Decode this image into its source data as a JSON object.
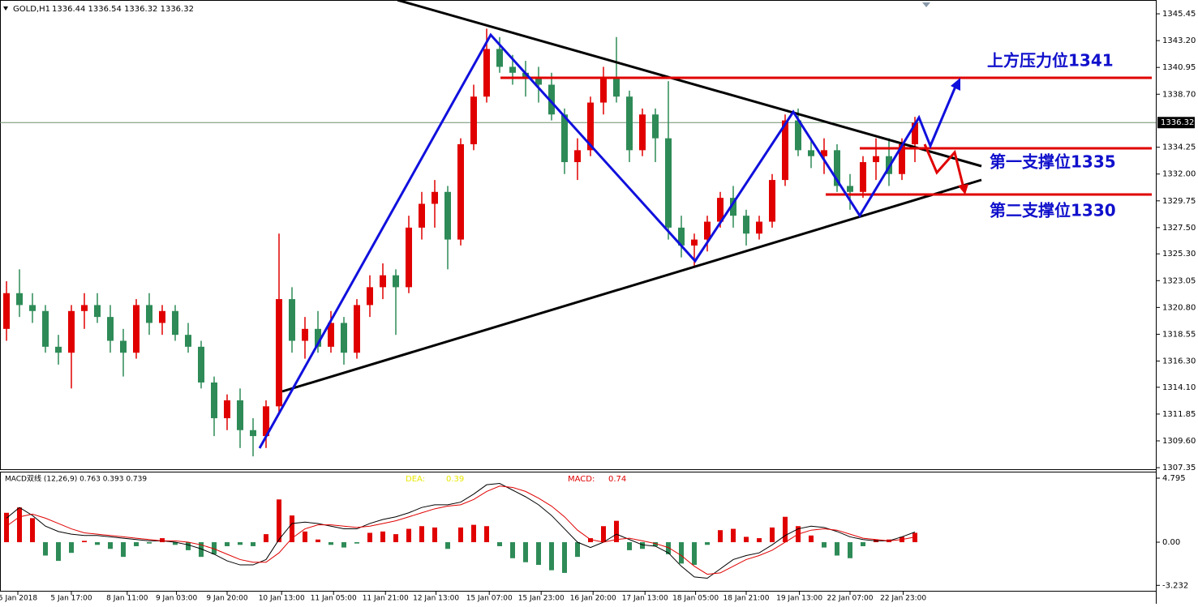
{
  "chart_data": [
    {
      "type": "candlestick",
      "title": "GOLD,H1",
      "ohlc_label": "1336.44 1336.54 1336.32 1336.32",
      "current_price": 1336.32,
      "up_color": "#e00000",
      "down_color": "#2e8b57",
      "xlim": [
        -0.5,
        88.5625
      ],
      "ylim": [
        1307.15,
        1346.61
      ],
      "yticks": [
        1345.45,
        {
          "value": 1343.2,
          "label": "1343.20"
        },
        1340.95,
        {
          "value": 1338.7,
          "label": "1338.70"
        },
        1334.25,
        {
          "value": 1332,
          "label": "1332.00"
        },
        1329.75,
        {
          "value": 1327.5,
          "label": "1327.50"
        },
        {
          "value": 1325.3,
          "label": "1325.30"
        },
        1323.05,
        {
          "value": 1320.8,
          "label": "1320.80"
        },
        1318.55,
        {
          "value": 1316.3,
          "label": "1316.30"
        },
        {
          "value": 1314.1,
          "label": "1314.10"
        },
        1311.85,
        {
          "value": 1309.6,
          "label": "1309.60"
        },
        1307.35
      ],
      "open": [
        1319,
        1322,
        1321,
        1320.5,
        1317.5,
        1317,
        1320.5,
        1321,
        1320,
        1318,
        1317,
        1321,
        1319.5,
        1320.5,
        1318.5,
        1317.5,
        1314.5,
        1311.5,
        1313,
        1310.5,
        1310,
        1312.5,
        1321.5,
        1318,
        1319,
        1317.5,
        1319.5,
        1317,
        1321,
        1322.5,
        1323.5,
        1322.5,
        1327.5,
        1329.5,
        1330.5,
        1326.5,
        1334.5,
        1338.5,
        1342.5,
        1341,
        1340.5,
        1340,
        1339.5,
        1337,
        1333,
        1334,
        1338,
        1340,
        1338.5,
        1334,
        1337,
        1335,
        1327.5,
        1326,
        1326.5,
        1328,
        1330,
        1328.5,
        1327,
        1328,
        1331.5,
        1336.5,
        1334,
        1333.5,
        1334,
        1331,
        1330.5,
        1333,
        1333.5,
        1332,
        1334.5
      ],
      "high": [
        1323,
        1324,
        1322,
        1321,
        1318.5,
        1321,
        1322,
        1322,
        1321,
        1319,
        1321.5,
        1322,
        1321,
        1321,
        1319.5,
        1318,
        1315,
        1313.5,
        1314,
        1311.5,
        1313,
        1327,
        1322.5,
        1320,
        1320.5,
        1320.5,
        1320,
        1321.5,
        1323.5,
        1324.5,
        1324,
        1328.5,
        1330.5,
        1331.5,
        1331,
        1335,
        1339.5,
        1344.2,
        1343.5,
        1342,
        1341.5,
        1341,
        1340.5,
        1337.5,
        1335,
        1338.5,
        1341,
        1343.5,
        1339,
        1337.5,
        1337.5,
        1339.8,
        1328.5,
        1327,
        1328.5,
        1330.5,
        1331,
        1329,
        1328.5,
        1332,
        1337,
        1337.5,
        1335,
        1335,
        1334.5,
        1332,
        1333.5,
        1335,
        1335,
        1335,
        1336.8
      ],
      "low": [
        1318,
        1320,
        1319.5,
        1317,
        1316,
        1314,
        1319,
        1319.5,
        1317,
        1315,
        1316.5,
        1318.5,
        1318.5,
        1318,
        1317,
        1314,
        1310,
        1310.5,
        1309,
        1308.3,
        1309,
        1312,
        1317,
        1316.5,
        1317,
        1317,
        1316,
        1316.5,
        1320,
        1321.5,
        1318.5,
        1322,
        1326.5,
        1327.5,
        1324,
        1326,
        1334,
        1338,
        1340.5,
        1339.5,
        1338.5,
        1338,
        1336.5,
        1332,
        1331.5,
        1333.5,
        1337,
        1338,
        1333,
        1333.5,
        1333,
        1326.5,
        1325,
        1324.3,
        1325.5,
        1327.5,
        1327.5,
        1326,
        1326.5,
        1327.5,
        1331,
        1333.5,
        1332.5,
        1332,
        1330.5,
        1329,
        1330,
        1331.5,
        1331,
        1331.5,
        1333
      ],
      "close": [
        1322,
        1321,
        1320.5,
        1317.5,
        1317,
        1320.5,
        1321,
        1320,
        1318,
        1317,
        1321,
        1319.5,
        1320.5,
        1318.5,
        1317.5,
        1314.5,
        1311.5,
        1313,
        1310.5,
        1310,
        1312.5,
        1321.5,
        1318,
        1319,
        1317.5,
        1319.5,
        1317,
        1321,
        1322.5,
        1323.5,
        1322.5,
        1327.5,
        1329.5,
        1330.5,
        1326.5,
        1334.5,
        1338.5,
        1342.5,
        1341,
        1340.5,
        1340,
        1339.5,
        1337,
        1333,
        1334,
        1338,
        1340,
        1338.5,
        1334,
        1337,
        1335,
        1327.5,
        1326,
        1326.5,
        1328,
        1330,
        1328.5,
        1327,
        1328,
        1331.5,
        1336.5,
        1334,
        1333.5,
        1334,
        1331,
        1330.5,
        1333,
        1333.5,
        1332,
        1334.5,
        1336.3
      ],
      "annotations": [
        "上方压力位1341",
        "第一支撑位1335",
        "第二支撑位1330"
      ]
    },
    {
      "type": "macd",
      "title": "MACD双线 (12,26,9) 0.763 0.393 0.739",
      "indicator_labels": [
        {
          "name": "DEA:",
          "value": 0.39,
          "color": "#e8e800"
        },
        {
          "name": "MACD:",
          "value": 0.74,
          "color": "#e00000"
        }
      ],
      "up_color": "#e00000",
      "down_color": "#2e8b57",
      "xlim": [
        -0.5,
        88.5625
      ],
      "ylim": [
        -3.7,
        5.22
      ],
      "yticks": [
        4.795,
        {
          "value": 0,
          "label": "0.00"
        },
        -3.232
      ],
      "xticks": [
        {
          "value": 0.875,
          "label": "5 Jan 2018"
        },
        {
          "value": 5,
          "label": "5 Jan 17:00"
        },
        {
          "value": 9.3,
          "label": "8 Jan 11:00"
        },
        {
          "value": 13.1,
          "label": "9 Jan 03:00"
        },
        {
          "value": 17,
          "label": "9 Jan 20:00"
        },
        {
          "value": 21.2,
          "label": "10 Jan 13:00"
        },
        {
          "value": 25.2,
          "label": "11 Jan 05:00"
        },
        {
          "value": 29.2,
          "label": "11 Jan 21:00"
        },
        {
          "value": 33.1,
          "label": "12 Jan 13:00"
        },
        {
          "value": 37.2,
          "label": "15 Jan 07:00"
        },
        {
          "value": 41.2,
          "label": "15 Jan 23:00"
        },
        {
          "value": 45.2,
          "label": "16 Jan 20:00"
        },
        {
          "value": 49.2,
          "label": "17 Jan 13:00"
        },
        {
          "value": 53.1,
          "label": "18 Jan 05:00"
        },
        {
          "value": 57,
          "label": "18 Jan 21:00"
        },
        {
          "value": 61.1,
          "label": "19 Jan 13:00"
        },
        {
          "value": 65,
          "label": "22 Jan 07:00"
        },
        {
          "value": 69.1,
          "label": "22 Jan 23:00"
        }
      ],
      "values": [
        2.2,
        2.6,
        1.8,
        -1.0,
        -1.4,
        -0.8,
        0.1,
        -0.2,
        -0.5,
        -1.1,
        -0.3,
        -0.1,
        0.3,
        -0.2,
        -0.6,
        -1.1,
        -0.9,
        -0.3,
        -0.2,
        -0.3,
        0.6,
        3.2,
        2.0,
        0.8,
        0.2,
        -0.2,
        -0.4,
        -0.1,
        0.7,
        0.8,
        0.6,
        1.0,
        1.2,
        1.1,
        -0.5,
        1.1,
        1.3,
        1.2,
        -0.3,
        -1.2,
        -1.5,
        -1.7,
        -2.1,
        -2.3,
        -1.1,
        0.3,
        1.2,
        1.6,
        -0.6,
        -0.5,
        -0.3,
        -0.9,
        -1.6,
        -1.7,
        -0.2,
        0.9,
        1.0,
        0.4,
        0.3,
        1.1,
        1.9,
        1.2,
        0.5,
        -0.4,
        -1.0,
        -1.2,
        -0.3,
        0.2,
        0.2,
        0.4,
        0.7
      ],
      "series": [
        {
          "color": "#000000",
          "values": [
            1.8,
            2.6,
            2.0,
            1.2,
            0.8,
            0.6,
            0.5,
            0.5,
            0.4,
            0.3,
            0.2,
            0.1,
            0.1,
            0.0,
            -0.2,
            -0.5,
            -0.9,
            -1.4,
            -1.7,
            -1.7,
            -1.3,
            0.2,
            1.4,
            1.5,
            1.4,
            1.2,
            1.0,
            1.0,
            1.4,
            1.7,
            1.9,
            2.2,
            2.6,
            2.8,
            2.8,
            3.0,
            3.6,
            4.3,
            4.4,
            3.9,
            3.4,
            2.8,
            2.0,
            1.0,
            0.0,
            -0.4,
            0.0,
            0.6,
            0.2,
            -0.2,
            -0.3,
            -0.8,
            -1.8,
            -2.6,
            -2.7,
            -2.0,
            -1.3,
            -1.0,
            -0.8,
            -0.2,
            0.5,
            1.0,
            1.2,
            1.1,
            0.8,
            0.4,
            0.2,
            0.1,
            0.1,
            0.4,
            0.76
          ]
        },
        {
          "color": "#e00000",
          "values": [
            1.2,
            1.9,
            2.1,
            1.8,
            1.4,
            1.0,
            0.7,
            0.6,
            0.5,
            0.4,
            0.3,
            0.2,
            0.1,
            0.1,
            0.0,
            -0.2,
            -0.5,
            -0.9,
            -1.3,
            -1.5,
            -1.5,
            -0.8,
            0.3,
            1.0,
            1.3,
            1.3,
            1.2,
            1.1,
            1.2,
            1.4,
            1.6,
            1.9,
            2.2,
            2.5,
            2.7,
            2.8,
            3.2,
            3.8,
            4.2,
            4.1,
            3.8,
            3.3,
            2.7,
            1.9,
            0.9,
            0.2,
            0.0,
            0.2,
            0.3,
            0.1,
            -0.1,
            -0.4,
            -1.0,
            -1.8,
            -2.4,
            -2.3,
            -1.8,
            -1.3,
            -1.0,
            -0.6,
            0.0,
            0.6,
            0.9,
            1.0,
            0.9,
            0.6,
            0.3,
            0.2,
            0.1,
            0.2,
            0.39
          ]
        }
      ]
    }
  ]
}
